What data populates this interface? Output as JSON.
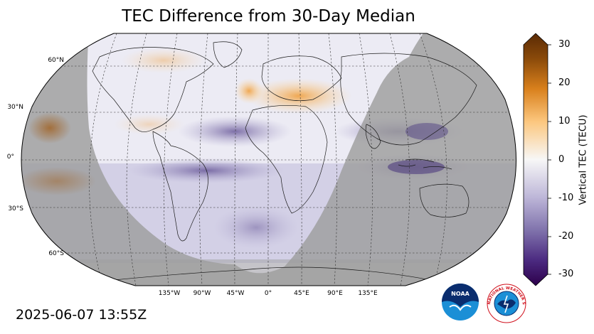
{
  "title": "TEC Difference from 30-Day Median",
  "timestamp": "2025-06-07 13:55Z",
  "map": {
    "projection": "robinson",
    "gridlines": "dashed",
    "lat_labels": [
      "60°N",
      "30°N",
      "0°",
      "30°S",
      "60°S"
    ],
    "lon_labels": [
      "135°W",
      "90°W",
      "45°W",
      "0°",
      "45°E",
      "90°E",
      "135°E"
    ],
    "night_shading_color": "#9a9a9a",
    "enhancements": [
      {
        "region": "Europe / Mediterranean",
        "sign": "positive"
      },
      {
        "region": "North Pacific near Hawaii",
        "sign": "positive"
      }
    ],
    "depletions": [
      {
        "region": "Equatorial Atlantic / Africa",
        "sign": "negative"
      },
      {
        "region": "Southeast Asia / Indonesia",
        "sign": "negative"
      }
    ]
  },
  "colorbar": {
    "label": "Vertical TEC (TECU)",
    "ticks": [
      "30",
      "20",
      "10",
      "0",
      "-10",
      "-20",
      "-30"
    ],
    "range": [
      -30,
      30
    ],
    "colormap": "PuOr_r",
    "colors": {
      "max": "#7f3b08",
      "high": "#e08214",
      "mid_high": "#fdb863",
      "zero": "#f7f7f7",
      "mid_low": "#b2abd2",
      "low": "#8073ac",
      "min": "#2d004b"
    }
  },
  "logos": [
    {
      "name": "noaa-logo",
      "text": "NOAA"
    },
    {
      "name": "nws-logo",
      "text": "NATIONAL WEATHER SERVICE"
    }
  ]
}
